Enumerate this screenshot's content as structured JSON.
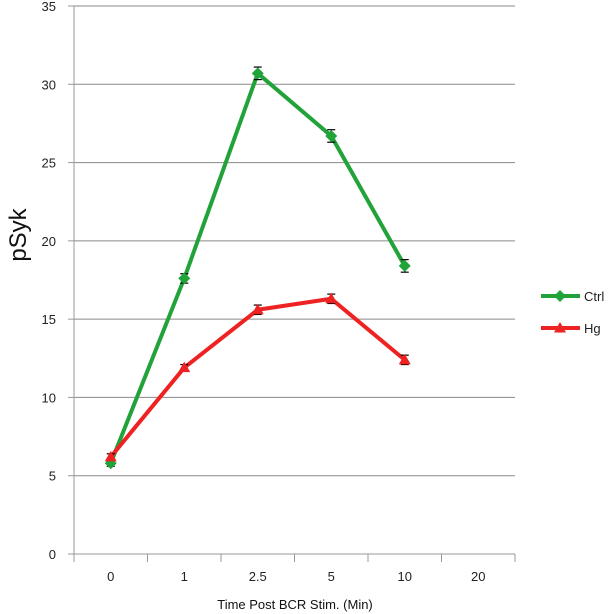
{
  "chart_data": {
    "type": "line",
    "title": "",
    "xlabel": "Time Post BCR Stim. (Min)",
    "ylabel": "pSyk",
    "categories": [
      "0",
      "1",
      "2.5",
      "5",
      "10",
      "20"
    ],
    "ylim": [
      0,
      35
    ],
    "yticks": [
      0,
      5,
      10,
      15,
      20,
      25,
      30,
      35
    ],
    "grid": "horizontal",
    "legend": "right",
    "series": [
      {
        "name": "Ctrl",
        "color": "#22a33a",
        "marker": "diamond",
        "values": [
          5.8,
          17.6,
          30.7,
          26.7,
          18.4,
          null
        ],
        "errors": [
          0.2,
          0.3,
          0.4,
          0.4,
          0.4,
          null
        ]
      },
      {
        "name": "Hg",
        "color": "#ee2222",
        "marker": "triangle",
        "values": [
          6.2,
          11.9,
          15.6,
          16.3,
          12.4,
          null
        ],
        "errors": [
          0.2,
          0.2,
          0.3,
          0.3,
          0.3,
          null
        ]
      }
    ]
  }
}
